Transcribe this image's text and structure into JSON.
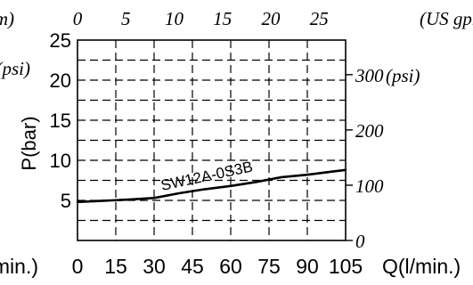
{
  "chart_data": {
    "type": "line",
    "title": "",
    "xlabel_bottom": "Q(l/min.)",
    "xlabel_bottom_left": "Q(l/min.)",
    "xticks_bottom": [
      "0",
      "15",
      "30",
      "45",
      "60",
      "75",
      "90",
      "105"
    ],
    "xlim": [
      0,
      105
    ],
    "xlabel_top_left": "(US gpm)",
    "xlabel_top": "(US gpm)",
    "xticks_top": [
      "0",
      "5",
      "10",
      "15",
      "20",
      "25"
    ],
    "top_axis_values": [
      0,
      5,
      10,
      15,
      20,
      25
    ],
    "ylabel_left": "P(bar)",
    "yticks_left": [
      "5",
      "10",
      "15",
      "20",
      "25"
    ],
    "ylim": [
      0,
      25
    ],
    "left_axis_extra_label": "(psi)",
    "yticks_right": [
      "0",
      "100",
      "200",
      "300"
    ],
    "yticks_right_unit": "(psi)",
    "right_axis_values": [
      0,
      100,
      200,
      300
    ],
    "grid": true,
    "series": [
      {
        "name": "SW12A-0S3B",
        "x": [
          0,
          10,
          20,
          30,
          40,
          50,
          60,
          70,
          80,
          90,
          100,
          105
        ],
        "y": [
          4.8,
          4.95,
          5.1,
          5.3,
          5.9,
          6.4,
          6.8,
          7.3,
          7.9,
          8.2,
          8.6,
          8.8
        ]
      }
    ]
  }
}
